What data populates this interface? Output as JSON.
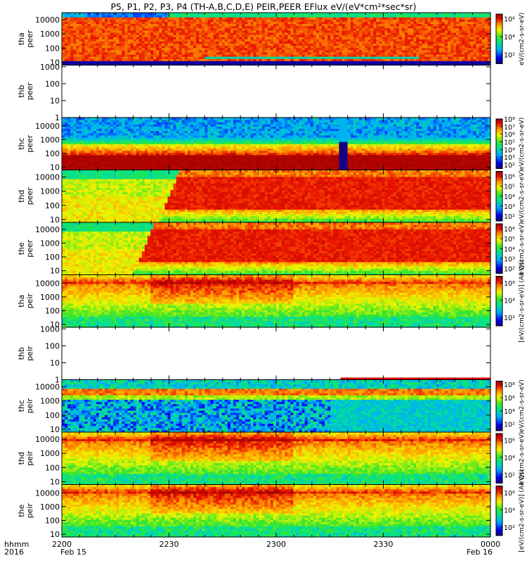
{
  "title": "P5, P1, P2, P3, P4 (TH-A,B,C,D,E) PEIR,PEER EFlux eV/(eV*cm²*sec*sr)",
  "footer": {
    "hhmm_label": "hhmm",
    "year_label": "2016",
    "date_start": "Feb 15",
    "date_end": "Feb 16"
  },
  "chart_data": {
    "type": "heatmap",
    "x_axis": {
      "ticks": [
        "2200",
        "2230",
        "2300",
        "2330",
        "0000"
      ],
      "tick_values_min": [
        0,
        30,
        60,
        90,
        120
      ],
      "range_min": [
        0,
        120
      ],
      "minor_tick_step_min": 5
    },
    "colorbar_labels": {
      "full": "[eV/(cm2-s-sr-eV)] (All Qs)",
      "alt": "eV/(cm2-s-sr-eV)"
    },
    "panels": [
      {
        "probe": "tha",
        "species": "peer",
        "ylabel": [
          "tha",
          "peer"
        ],
        "yticks": [
          "10",
          "100",
          "1000",
          "10000"
        ],
        "ylog": [
          0.8,
          4.5
        ],
        "colorbar": {
          "ticks": [
            "10²",
            "10⁴",
            "10⁶"
          ],
          "range_log": [
            1,
            6.5
          ]
        },
        "cbar_label": "alt",
        "pattern": {
          "bg": 0.85,
          "lowbandLevel": 0.0,
          "lowbandE": 1.6,
          "spikeT": [
            40,
            100
          ],
          "regions": [
            {
              "t0": 0,
              "t1": 7,
              "top": 0.6
            },
            {
              "t0": 7,
              "t1": 30,
              "top": 0.45
            },
            {
              "t0": 30,
              "t1": 120,
              "top": 0.9
            }
          ]
        }
      },
      {
        "probe": "thb",
        "species": "peer",
        "ylabel": [
          "thb",
          "peer"
        ],
        "yticks": [
          "1",
          "10",
          "100",
          "1000"
        ],
        "ylog": [
          0,
          3.1
        ],
        "colorbar": null,
        "empty": true
      },
      {
        "probe": "thc",
        "species": "peer",
        "ylabel": [
          "thc",
          "peer"
        ],
        "yticks": [
          "10",
          "100",
          "1000",
          "10000"
        ],
        "ylog": [
          0.8,
          4.6
        ],
        "colorbar": {
          "ticks": [
            "10²",
            "10³",
            "10⁴",
            "10⁵",
            "10⁶",
            "10⁷",
            "10⁸"
          ],
          "range_log": [
            1.5,
            8
          ]
        },
        "cbar_label": "alt",
        "pattern": {
          "bg": 0.3,
          "bandE": 3.1,
          "gapT": [
            78,
            80
          ]
        }
      },
      {
        "probe": "thd",
        "species": "peer",
        "ylabel": [
          "thd",
          "peer"
        ],
        "yticks": [
          "10",
          "100",
          "1000",
          "10000"
        ],
        "ylog": [
          0.8,
          4.5
        ],
        "colorbar": {
          "ticks": [
            "10²",
            "10³",
            "10⁴",
            "10⁵",
            "10⁶"
          ],
          "range_log": [
            1.5,
            6.5
          ]
        },
        "cbar_label": "alt",
        "pattern": {
          "bg": 0.6,
          "stepT": 27
        }
      },
      {
        "probe": "the",
        "species": "peer",
        "ylabel": [
          "the",
          "peer"
        ],
        "yticks": [
          "10",
          "100",
          "1000",
          "10000"
        ],
        "ylog": [
          0.7,
          4.5
        ],
        "colorbar": {
          "ticks": [
            "10²",
            "10³",
            "10⁴",
            "10⁵",
            "10⁶"
          ],
          "range_log": [
            1.5,
            6.5
          ]
        },
        "cbar_label": "alt",
        "pattern": {
          "bg": 0.55,
          "stepT": 20
        }
      },
      {
        "probe": "tha",
        "species": "peir",
        "ylabel": [
          "tha",
          "peir"
        ],
        "yticks": [
          "10",
          "100",
          "1000",
          "10000"
        ],
        "ylog": [
          0.8,
          4.6
        ],
        "colorbar": {
          "ticks": [
            "10²",
            "10⁴",
            "10⁶"
          ],
          "range_log": [
            1,
            6.8
          ]
        },
        "cbar_label": "full",
        "pattern": {
          "bg": 0.45,
          "ion": true
        }
      },
      {
        "probe": "thb",
        "species": "peir",
        "ylabel": [
          "thb",
          "peir"
        ],
        "yticks": [
          "1",
          "10",
          "100",
          "1000"
        ],
        "ylog": [
          0,
          3.1
        ],
        "colorbar": null,
        "empty": true,
        "bar": {
          "t0": 78,
          "t1": 120
        }
      },
      {
        "probe": "thc",
        "species": "peir",
        "ylabel": [
          "thc",
          "peir"
        ],
        "yticks": [
          "10",
          "100",
          "1000",
          "10000"
        ],
        "ylog": [
          0.8,
          4.5
        ],
        "colorbar": {
          "ticks": [
            "10²",
            "10⁴",
            "10⁶",
            "10⁸"
          ],
          "range_log": [
            1,
            8.5
          ]
        },
        "cbar_label": "alt",
        "pattern": {
          "bg": 0.25,
          "bandE": 3.2,
          "noisyT": [
            0,
            75
          ]
        }
      },
      {
        "probe": "thd",
        "species": "peir",
        "ylabel": [
          "thd",
          "peir"
        ],
        "yticks": [
          "10",
          "100",
          "1000",
          "10000"
        ],
        "ylog": [
          0.8,
          4.5
        ],
        "colorbar": {
          "ticks": [
            "10²",
            "10⁴",
            "10⁶"
          ],
          "range_log": [
            1,
            6.8
          ]
        },
        "cbar_label": "alt",
        "pattern": {
          "bg": 0.5,
          "ion": true
        }
      },
      {
        "probe": "the",
        "species": "peir",
        "ylabel": [
          "the",
          "peir"
        ],
        "yticks": [
          "10",
          "100",
          "1000",
          "10000"
        ],
        "ylog": [
          0.8,
          4.6
        ],
        "colorbar": {
          "ticks": [
            "10²",
            "10⁴",
            "10⁶"
          ],
          "range_log": [
            1,
            6.8
          ]
        },
        "cbar_label": "full",
        "pattern": {
          "bg": 0.5,
          "ion": true
        }
      }
    ]
  }
}
